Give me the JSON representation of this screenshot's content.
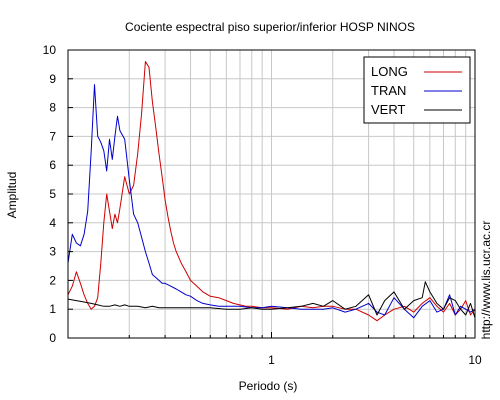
{
  "chart_data": {
    "type": "line",
    "title": "Cociente espectral piso superior/inferior  HOSP NINOS",
    "xlabel": "Periodo (s)",
    "ylabel": "Amplitud",
    "x_scale": "log",
    "xlim": [
      0.1,
      10
    ],
    "ylim": [
      0,
      10
    ],
    "x_tick_labels": [
      "1",
      "10"
    ],
    "y_tick_labels": [
      "0",
      "1",
      "2",
      "3",
      "4",
      "5",
      "6",
      "7",
      "8",
      "9",
      "10"
    ],
    "grid": true,
    "legend_position": "top-right",
    "side_annotation": "http://www.lis.ucr.ac.cr",
    "series": [
      {
        "name": "LONG",
        "color": "#cc0000",
        "x": [
          0.1,
          0.105,
          0.11,
          0.115,
          0.12,
          0.125,
          0.13,
          0.135,
          0.14,
          0.145,
          0.15,
          0.155,
          0.16,
          0.165,
          0.17,
          0.175,
          0.18,
          0.19,
          0.2,
          0.21,
          0.22,
          0.23,
          0.24,
          0.25,
          0.26,
          0.27,
          0.28,
          0.29,
          0.3,
          0.31,
          0.32,
          0.33,
          0.34,
          0.36,
          0.38,
          0.4,
          0.43,
          0.46,
          0.5,
          0.55,
          0.6,
          0.65,
          0.7,
          0.75,
          0.8,
          0.9,
          1.0,
          1.2,
          1.4,
          1.6,
          1.8,
          2.0,
          2.3,
          2.6,
          3.0,
          3.3,
          3.6,
          4.0,
          4.5,
          5.0,
          5.5,
          6.0,
          6.5,
          7.0,
          7.5,
          8.0,
          8.5,
          9.0,
          9.5,
          10.0
        ],
        "y": [
          1.5,
          1.8,
          2.3,
          1.9,
          1.5,
          1.2,
          1.0,
          1.1,
          1.4,
          2.6,
          4.0,
          5.0,
          4.4,
          3.8,
          4.3,
          4.0,
          4.5,
          5.6,
          5.0,
          5.3,
          6.4,
          7.8,
          9.6,
          9.4,
          8.2,
          7.3,
          6.4,
          5.6,
          4.8,
          4.2,
          3.7,
          3.3,
          3.0,
          2.6,
          2.3,
          2.0,
          1.8,
          1.6,
          1.45,
          1.4,
          1.3,
          1.2,
          1.15,
          1.1,
          1.1,
          1.05,
          1.05,
          1.0,
          1.1,
          1.05,
          1.1,
          1.1,
          1.0,
          1.0,
          0.8,
          0.6,
          0.8,
          1.0,
          1.1,
          0.9,
          1.2,
          1.4,
          1.1,
          0.9,
          1.2,
          0.8,
          1.0,
          1.3,
          0.8,
          1.0
        ]
      },
      {
        "name": "TRAN",
        "color": "#0000cc",
        "x": [
          0.1,
          0.105,
          0.11,
          0.115,
          0.12,
          0.125,
          0.13,
          0.135,
          0.14,
          0.145,
          0.15,
          0.155,
          0.16,
          0.165,
          0.17,
          0.175,
          0.18,
          0.19,
          0.2,
          0.21,
          0.22,
          0.23,
          0.24,
          0.25,
          0.26,
          0.27,
          0.28,
          0.29,
          0.3,
          0.32,
          0.34,
          0.36,
          0.38,
          0.4,
          0.43,
          0.46,
          0.5,
          0.55,
          0.6,
          0.7,
          0.8,
          0.9,
          1.0,
          1.2,
          1.4,
          1.6,
          1.8,
          2.0,
          2.3,
          2.6,
          3.0,
          3.3,
          3.6,
          4.0,
          4.5,
          5.0,
          5.5,
          6.0,
          6.5,
          7.0,
          7.5,
          8.0,
          8.5,
          9.0,
          9.5,
          10.0
        ],
        "y": [
          2.6,
          3.6,
          3.3,
          3.2,
          3.6,
          4.4,
          6.5,
          8.8,
          7.0,
          6.8,
          6.5,
          5.8,
          6.9,
          6.2,
          7.0,
          7.7,
          7.2,
          6.9,
          5.5,
          4.3,
          4.0,
          3.5,
          3.0,
          2.6,
          2.2,
          2.1,
          2.0,
          1.9,
          1.9,
          1.8,
          1.7,
          1.6,
          1.5,
          1.45,
          1.3,
          1.2,
          1.15,
          1.1,
          1.1,
          1.1,
          1.05,
          1.05,
          1.1,
          1.05,
          1.0,
          1.0,
          1.0,
          1.05,
          0.9,
          1.0,
          1.2,
          0.9,
          0.8,
          1.4,
          1.0,
          0.7,
          1.1,
          1.3,
          0.9,
          1.0,
          1.5,
          0.8,
          1.1,
          1.0,
          0.9,
          1.0
        ]
      },
      {
        "name": "VERT",
        "color": "#000000",
        "x": [
          0.1,
          0.11,
          0.12,
          0.13,
          0.14,
          0.15,
          0.16,
          0.17,
          0.18,
          0.19,
          0.2,
          0.22,
          0.24,
          0.26,
          0.28,
          0.3,
          0.35,
          0.4,
          0.5,
          0.6,
          0.7,
          0.8,
          0.9,
          1.0,
          1.2,
          1.4,
          1.6,
          1.8,
          2.0,
          2.3,
          2.6,
          3.0,
          3.3,
          3.6,
          4.0,
          4.5,
          5.0,
          5.5,
          5.7,
          6.0,
          6.5,
          7.0,
          7.5,
          8.0,
          8.5,
          9.0,
          9.5,
          10.0
        ],
        "y": [
          1.35,
          1.3,
          1.25,
          1.2,
          1.15,
          1.1,
          1.1,
          1.15,
          1.1,
          1.15,
          1.1,
          1.1,
          1.05,
          1.1,
          1.05,
          1.05,
          1.05,
          1.05,
          1.05,
          1.0,
          1.0,
          1.05,
          1.0,
          1.0,
          1.05,
          1.1,
          1.2,
          1.1,
          1.3,
          1.0,
          1.1,
          1.5,
          0.8,
          1.3,
          1.6,
          1.0,
          1.3,
          1.4,
          1.95,
          1.6,
          1.2,
          1.0,
          1.4,
          1.3,
          1.0,
          0.8,
          1.2,
          0.7
        ]
      }
    ]
  }
}
